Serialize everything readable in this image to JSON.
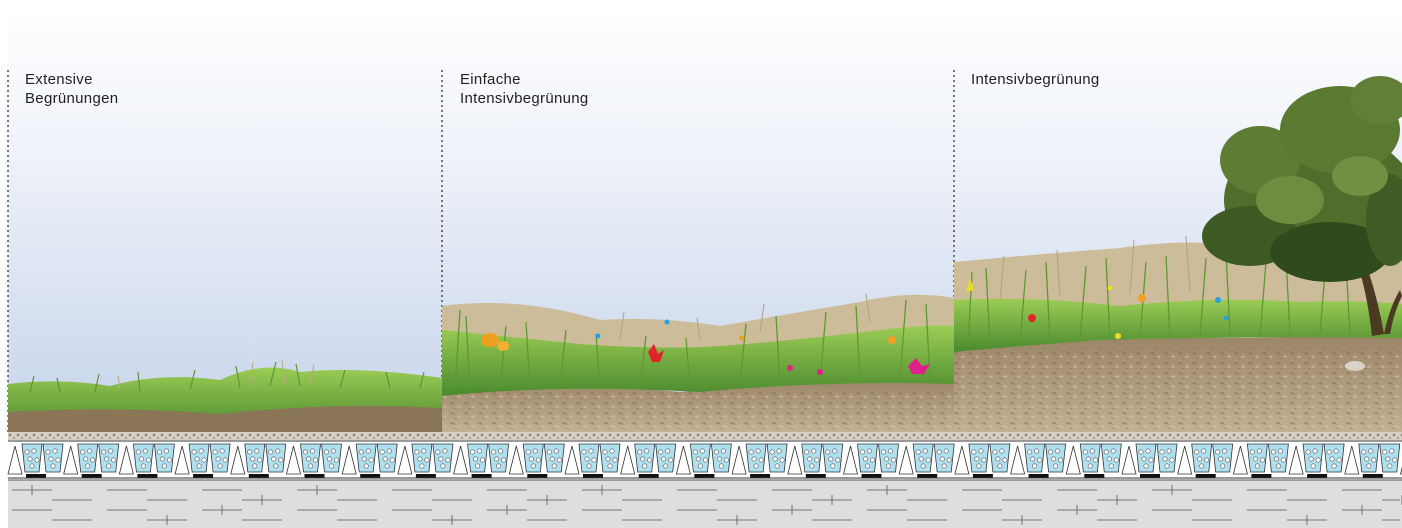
{
  "zones": [
    {
      "id": "extensive",
      "label": "Extensive\nBegrünungen"
    },
    {
      "id": "simple-intensive",
      "label": "Einfache\nIntensivbegrünung"
    },
    {
      "id": "intensive",
      "label": "Intensivbegrünung"
    }
  ],
  "colors": {
    "sky_top": "#ffffff",
    "sky_bottom": "#c9d5ea",
    "soil_light": "#b9a88d",
    "soil_dark": "#8a7458",
    "grass_light": "#8dc24a",
    "grass_dark": "#3e7a2a",
    "dry_grass": "#bfae8e",
    "tree_foliage": "#4f6e2c",
    "tree_foliage_dark": "#2f4a1c",
    "water_cell": "#aee0f0",
    "slab": "#dedede",
    "flower_orange": "#f0a020",
    "flower_red": "#e0242a",
    "flower_pink": "#e0208a",
    "flower_blue": "#2aa0e0",
    "flower_yellow": "#e8e020"
  }
}
